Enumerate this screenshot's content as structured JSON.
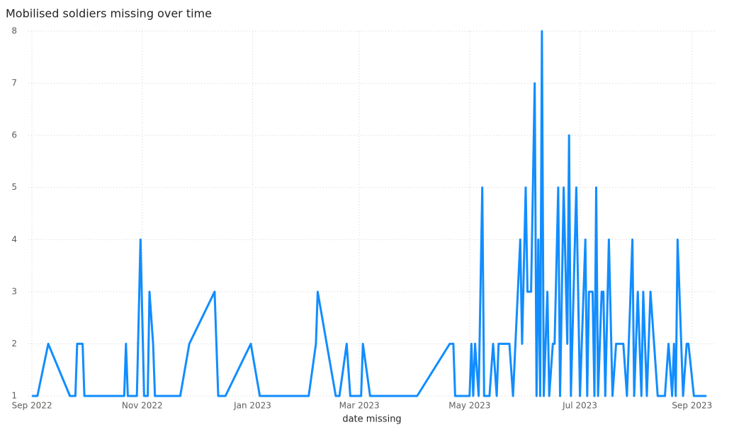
{
  "chart_data": {
    "type": "line",
    "title": "Mobilised soldiers missing over time",
    "xlabel": "date missing",
    "x": [
      "2022-09-01",
      "2022-09-04",
      "2022-09-10",
      "2022-09-22",
      "2022-09-25",
      "2022-09-26",
      "2022-09-29",
      "2022-09-30",
      "2022-10-22",
      "2022-10-23",
      "2022-10-24",
      "2022-10-29",
      "2022-10-31",
      "2022-11-02",
      "2022-11-04",
      "2022-11-05",
      "2022-11-07",
      "2022-11-08",
      "2022-11-22",
      "2022-11-27",
      "2022-12-11",
      "2022-12-13",
      "2022-12-17",
      "2022-12-31",
      "2023-01-05",
      "2023-02-01",
      "2023-02-05",
      "2023-02-06",
      "2023-02-16",
      "2023-02-18",
      "2023-02-22",
      "2023-02-24",
      "2023-03-02",
      "2023-03-03",
      "2023-03-07",
      "2023-04-02",
      "2023-04-20",
      "2023-04-22",
      "2023-04-23",
      "2023-05-01",
      "2023-05-02",
      "2023-05-03",
      "2023-05-04",
      "2023-05-06",
      "2023-05-08",
      "2023-05-09",
      "2023-05-12",
      "2023-05-14",
      "2023-05-16",
      "2023-05-17",
      "2023-05-23",
      "2023-05-25",
      "2023-05-29",
      "2023-05-30",
      "2023-06-01",
      "2023-06-02",
      "2023-06-04",
      "2023-06-06",
      "2023-06-07",
      "2023-06-08",
      "2023-06-09",
      "2023-06-10",
      "2023-06-11",
      "2023-06-13",
      "2023-06-14",
      "2023-06-16",
      "2023-06-17",
      "2023-06-19",
      "2023-06-20",
      "2023-06-22",
      "2023-06-24",
      "2023-06-25",
      "2023-06-26",
      "2023-06-29",
      "2023-07-01",
      "2023-07-04",
      "2023-07-05",
      "2023-07-06",
      "2023-07-08",
      "2023-07-09",
      "2023-07-10",
      "2023-07-11",
      "2023-07-13",
      "2023-07-14",
      "2023-07-15",
      "2023-07-17",
      "2023-07-19",
      "2023-07-21",
      "2023-07-25",
      "2023-07-27",
      "2023-07-30",
      "2023-07-31",
      "2023-08-02",
      "2023-08-04",
      "2023-08-05",
      "2023-08-07",
      "2023-08-09",
      "2023-08-13",
      "2023-08-17",
      "2023-08-19",
      "2023-08-21",
      "2023-08-22",
      "2023-08-23",
      "2023-08-24",
      "2023-08-27",
      "2023-08-29",
      "2023-08-30",
      "2023-09-02",
      "2023-09-09"
    ],
    "series": [
      {
        "name": "count",
        "color": "#118dff",
        "values": [
          1,
          1,
          2,
          1,
          1,
          2,
          2,
          1,
          1,
          2,
          1,
          1,
          4,
          1,
          1,
          3,
          2,
          1,
          1,
          2,
          3,
          1,
          1,
          2,
          1,
          1,
          2,
          3,
          1,
          1,
          2,
          1,
          1,
          2,
          1,
          1,
          2,
          2,
          1,
          1,
          2,
          1,
          2,
          1,
          5,
          1,
          1,
          2,
          1,
          2,
          2,
          1,
          4,
          2,
          5,
          3,
          3,
          7,
          1,
          4,
          1,
          8,
          1,
          3,
          1,
          2,
          2,
          5,
          1,
          5,
          2,
          6,
          1,
          5,
          1,
          4,
          1,
          3,
          3,
          1,
          5,
          1,
          3,
          3,
          1,
          4,
          1,
          2,
          2,
          1,
          4,
          1,
          3,
          1,
          3,
          1,
          3,
          1,
          1,
          2,
          1,
          2,
          1,
          4,
          1,
          2,
          2,
          1,
          1
        ]
      }
    ],
    "xlim": [
      "2022-08-30",
      "2023-09-14"
    ],
    "xticks": [
      {
        "value": "2022-09-01",
        "label": "Sep 2022"
      },
      {
        "value": "2022-11-01",
        "label": "Nov 2022"
      },
      {
        "value": "2023-01-01",
        "label": "Jan 2023"
      },
      {
        "value": "2023-03-01",
        "label": "Mar 2023"
      },
      {
        "value": "2023-05-01",
        "label": "May 2023"
      },
      {
        "value": "2023-07-01",
        "label": "Jul 2023"
      },
      {
        "value": "2023-09-01",
        "label": "Sep 2023"
      }
    ],
    "ylim": [
      1,
      8
    ],
    "yticks": [
      1,
      2,
      3,
      4,
      5,
      6,
      7,
      8
    ],
    "grid": true
  }
}
